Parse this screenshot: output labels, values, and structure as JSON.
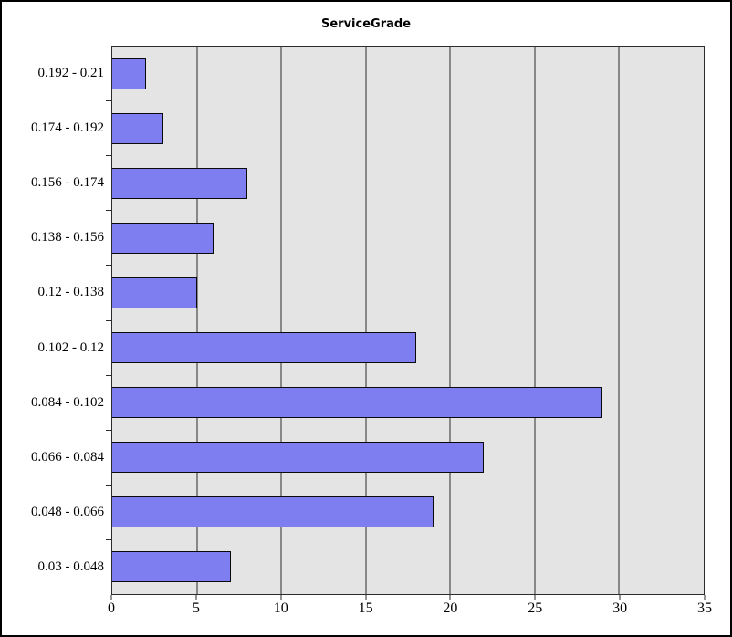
{
  "title": "ServiceGrade",
  "colors": {
    "page_bg": "#ffffff",
    "outer_border": "#000000",
    "plot_bg": "#e4e4e4",
    "grid": "#2b2b2b",
    "bar_fill": "#7e7ef0",
    "bar_border": "#0a0a0a",
    "text": "#000000"
  },
  "chart_data": {
    "type": "bar",
    "orientation": "horizontal",
    "title": "ServiceGrade",
    "categories": [
      "0.192 - 0.21",
      "0.174 - 0.192",
      "0.156 - 0.174",
      "0.138 - 0.156",
      "0.12 - 0.138",
      "0.102 - 0.12",
      "0.084 - 0.102",
      "0.066 - 0.084",
      "0.048 - 0.066",
      "0.03 - 0.048"
    ],
    "values": [
      2,
      3,
      8,
      6,
      5,
      18,
      29,
      22,
      19,
      7
    ],
    "x_ticks": [
      0,
      5,
      10,
      15,
      20,
      25,
      30,
      35
    ],
    "xlim": [
      0,
      35
    ],
    "xlabel": "",
    "ylabel": "",
    "grid": "vertical",
    "legend": "none"
  }
}
